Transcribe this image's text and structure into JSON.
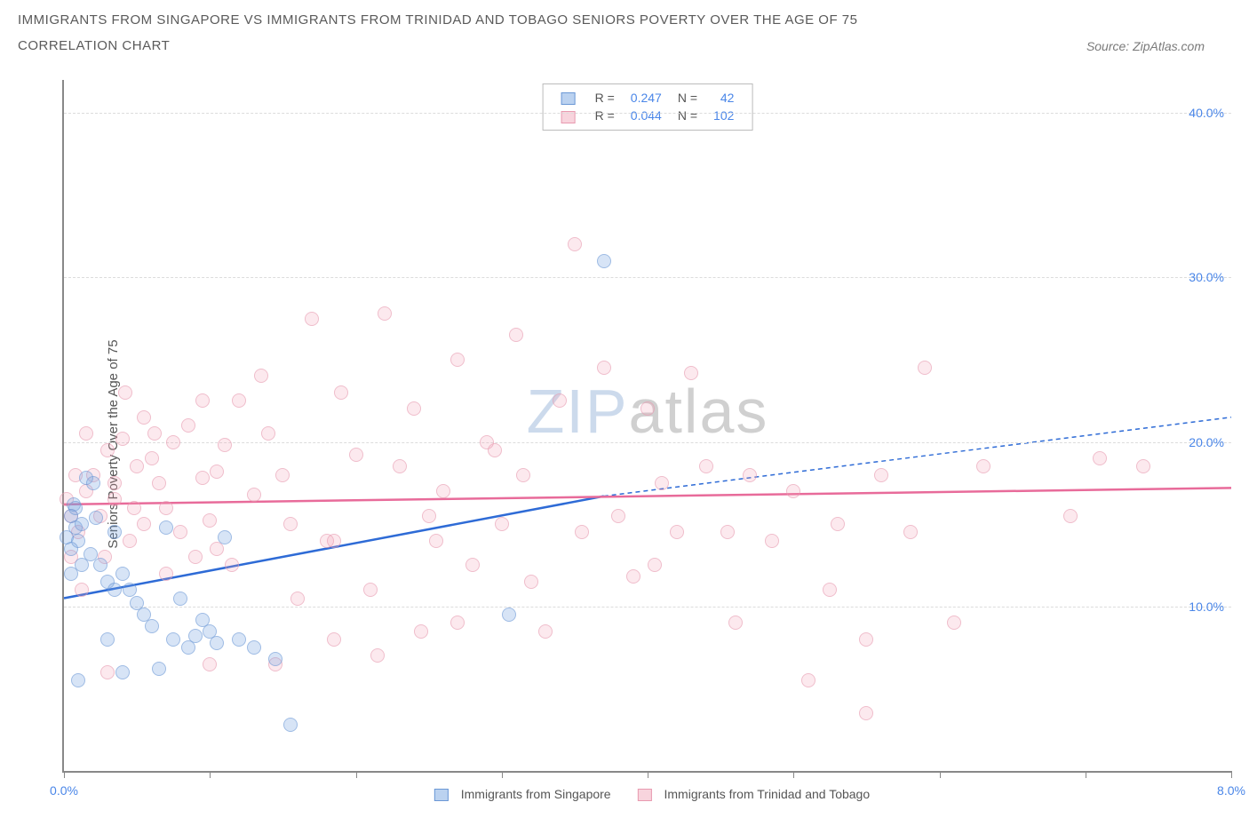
{
  "title": "IMMIGRANTS FROM SINGAPORE VS IMMIGRANTS FROM TRINIDAD AND TOBAGO SENIORS POVERTY OVER THE AGE OF 75",
  "subtitle": "CORRELATION CHART",
  "source": "Source: ZipAtlas.com",
  "y_axis_label": "Seniors Poverty Over the Age of 75",
  "chart": {
    "type": "scatter",
    "xlim": [
      0,
      8
    ],
    "ylim": [
      0,
      42
    ],
    "x_ticks": [
      0,
      1,
      2,
      3,
      4,
      5,
      6,
      7,
      8
    ],
    "x_tick_labels": {
      "0": "0.0%",
      "8": "8.0%"
    },
    "y_gridlines": [
      10,
      20,
      30,
      40
    ],
    "y_tick_labels": {
      "10": "10.0%",
      "20": "20.0%",
      "30": "30.0%",
      "40": "40.0%"
    },
    "background_color": "#ffffff",
    "grid_color": "#dcdcdc",
    "axis_color": "#888888",
    "series": [
      {
        "name": "Immigrants from Singapore",
        "color_fill": "rgba(120,165,225,0.45)",
        "color_stroke": "#6b98d6",
        "line_color": "#2e6bd6",
        "R": "0.247",
        "N": "42",
        "trend": {
          "x1": 0,
          "y1": 10.5,
          "x2": 3.7,
          "y2": 16.7,
          "dash_to_x": 8.0,
          "dash_to_y": 21.5
        },
        "points": [
          [
            0.05,
            15.5
          ],
          [
            0.08,
            14.8
          ],
          [
            0.07,
            16.2
          ],
          [
            0.1,
            14.0
          ],
          [
            0.12,
            15.0
          ],
          [
            0.05,
            13.5
          ],
          [
            0.02,
            14.2
          ],
          [
            0.08,
            16.0
          ],
          [
            0.15,
            17.8
          ],
          [
            0.18,
            13.2
          ],
          [
            0.22,
            15.4
          ],
          [
            0.25,
            12.5
          ],
          [
            0.3,
            11.5
          ],
          [
            0.35,
            14.5
          ],
          [
            0.4,
            12.0
          ],
          [
            0.45,
            11.0
          ],
          [
            0.5,
            10.2
          ],
          [
            0.55,
            9.5
          ],
          [
            0.6,
            8.8
          ],
          [
            0.65,
            6.2
          ],
          [
            0.7,
            14.8
          ],
          [
            0.75,
            8.0
          ],
          [
            0.8,
            10.5
          ],
          [
            0.85,
            7.5
          ],
          [
            0.9,
            8.2
          ],
          [
            0.95,
            9.2
          ],
          [
            1.0,
            8.5
          ],
          [
            1.05,
            7.8
          ],
          [
            1.1,
            14.2
          ],
          [
            1.2,
            8.0
          ],
          [
            1.3,
            7.5
          ],
          [
            1.45,
            6.8
          ],
          [
            1.55,
            2.8
          ],
          [
            0.3,
            8.0
          ],
          [
            0.4,
            6.0
          ],
          [
            0.2,
            17.5
          ],
          [
            0.12,
            12.5
          ],
          [
            0.05,
            12.0
          ],
          [
            3.05,
            9.5
          ],
          [
            3.7,
            31.0
          ],
          [
            0.35,
            11.0
          ],
          [
            0.1,
            5.5
          ]
        ]
      },
      {
        "name": "Immigrants from Trinidad and Tobago",
        "color_fill": "rgba(240,160,180,0.35)",
        "color_stroke": "#e89ab0",
        "line_color": "#e86b9a",
        "R": "0.044",
        "N": "102",
        "trend": {
          "x1": 0,
          "y1": 16.2,
          "x2": 8.0,
          "y2": 17.2
        },
        "points": [
          [
            0.05,
            15.5
          ],
          [
            0.1,
            14.5
          ],
          [
            0.15,
            17.0
          ],
          [
            0.2,
            18.0
          ],
          [
            0.25,
            15.5
          ],
          [
            0.3,
            19.5
          ],
          [
            0.35,
            16.5
          ],
          [
            0.4,
            20.2
          ],
          [
            0.45,
            14.0
          ],
          [
            0.5,
            18.5
          ],
          [
            0.55,
            15.0
          ],
          [
            0.6,
            19.0
          ],
          [
            0.65,
            17.5
          ],
          [
            0.7,
            16.0
          ],
          [
            0.75,
            20.0
          ],
          [
            0.8,
            14.5
          ],
          [
            0.85,
            21.0
          ],
          [
            0.9,
            13.0
          ],
          [
            0.95,
            17.8
          ],
          [
            1.0,
            15.2
          ],
          [
            1.05,
            18.2
          ],
          [
            1.1,
            19.8
          ],
          [
            1.15,
            12.5
          ],
          [
            1.2,
            22.5
          ],
          [
            1.3,
            16.8
          ],
          [
            1.4,
            20.5
          ],
          [
            1.5,
            18.0
          ],
          [
            1.6,
            10.5
          ],
          [
            1.7,
            27.5
          ],
          [
            1.8,
            14.0
          ],
          [
            1.9,
            23.0
          ],
          [
            2.0,
            19.2
          ],
          [
            2.1,
            11.0
          ],
          [
            2.2,
            27.8
          ],
          [
            2.3,
            18.5
          ],
          [
            2.4,
            22.0
          ],
          [
            2.5,
            15.5
          ],
          [
            2.6,
            17.0
          ],
          [
            2.7,
            25.0
          ],
          [
            2.8,
            12.5
          ],
          [
            2.9,
            20.0
          ],
          [
            3.0,
            15.0
          ],
          [
            3.1,
            26.5
          ],
          [
            3.2,
            11.5
          ],
          [
            3.3,
            8.5
          ],
          [
            3.4,
            22.5
          ],
          [
            3.5,
            32.0
          ],
          [
            3.55,
            14.5
          ],
          [
            3.7,
            24.5
          ],
          [
            3.8,
            15.5
          ],
          [
            3.9,
            11.8
          ],
          [
            4.0,
            22.0
          ],
          [
            4.1,
            17.5
          ],
          [
            4.2,
            14.5
          ],
          [
            4.3,
            24.2
          ],
          [
            4.4,
            18.5
          ],
          [
            4.55,
            14.5
          ],
          [
            4.6,
            9.0
          ],
          [
            4.7,
            18.0
          ],
          [
            5.0,
            17.0
          ],
          [
            5.1,
            5.5
          ],
          [
            5.3,
            15.0
          ],
          [
            5.5,
            8.0
          ],
          [
            5.8,
            14.5
          ],
          [
            5.9,
            24.5
          ],
          [
            6.1,
            9.0
          ],
          [
            6.3,
            18.5
          ],
          [
            6.9,
            15.5
          ],
          [
            7.1,
            19.0
          ],
          [
            7.4,
            18.5
          ],
          [
            5.5,
            3.5
          ],
          [
            1.45,
            6.5
          ],
          [
            1.85,
            8.0
          ],
          [
            2.15,
            7.0
          ],
          [
            0.55,
            21.5
          ],
          [
            0.42,
            23.0
          ],
          [
            0.28,
            13.0
          ],
          [
            0.12,
            11.0
          ],
          [
            0.3,
            6.0
          ],
          [
            0.7,
            12.0
          ],
          [
            1.0,
            6.5
          ],
          [
            1.55,
            15.0
          ],
          [
            1.85,
            14.0
          ],
          [
            2.45,
            8.5
          ],
          [
            2.7,
            9.0
          ],
          [
            2.95,
            19.5
          ],
          [
            0.15,
            20.5
          ],
          [
            0.35,
            17.5
          ],
          [
            0.48,
            16.0
          ],
          [
            0.62,
            20.5
          ],
          [
            0.95,
            22.5
          ],
          [
            1.35,
            24.0
          ],
          [
            1.05,
            13.5
          ],
          [
            0.08,
            18.0
          ],
          [
            0.02,
            16.5
          ],
          [
            0.05,
            13.0
          ],
          [
            2.55,
            14.0
          ],
          [
            3.15,
            18.0
          ],
          [
            4.05,
            12.5
          ],
          [
            4.85,
            14.0
          ],
          [
            5.25,
            11.0
          ],
          [
            5.6,
            18.0
          ]
        ]
      }
    ]
  },
  "legend_top": {
    "rows": [
      {
        "swatch": "blue",
        "R_label": "R =",
        "R": "0.247",
        "N_label": "N =",
        "N": "42"
      },
      {
        "swatch": "pink",
        "R_label": "R =",
        "R": "0.044",
        "N_label": "N =",
        "N": "102"
      }
    ]
  },
  "legend_bottom": {
    "items": [
      {
        "swatch": "blue",
        "label": "Immigrants from Singapore"
      },
      {
        "swatch": "pink",
        "label": "Immigrants from Trinidad and Tobago"
      }
    ]
  },
  "watermark": {
    "part1": "ZIP",
    "part2": "atlas"
  }
}
